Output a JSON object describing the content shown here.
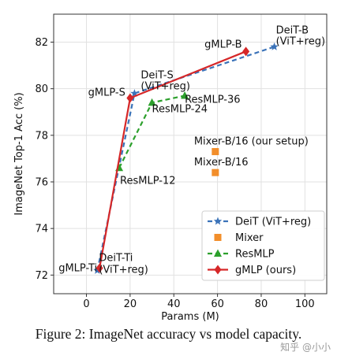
{
  "chart_data": {
    "type": "line",
    "xlabel": "Params (M)",
    "ylabel": "ImageNet Top-1 Acc (%)",
    "xlim": [
      -15,
      110
    ],
    "ylim": [
      71.2,
      83.2
    ],
    "xticks": [
      0,
      20,
      40,
      60,
      80,
      100
    ],
    "yticks": [
      72,
      74,
      76,
      78,
      80,
      82
    ],
    "grid": true,
    "legend_position": "lower right",
    "series": [
      {
        "name": "DeiT (ViT+reg)",
        "color": "#3b73b9",
        "marker": "star",
        "dash": true,
        "x": [
          5,
          22,
          86
        ],
        "y": [
          72.2,
          79.8,
          81.8
        ]
      },
      {
        "name": "Mixer",
        "color": "#f28e2b",
        "marker": "square",
        "dash": false,
        "line": false,
        "x": [
          59,
          59
        ],
        "y": [
          76.4,
          77.3
        ]
      },
      {
        "name": "ResMLP",
        "color": "#2ca02c",
        "marker": "triangle",
        "dash": true,
        "x": [
          15,
          30,
          45
        ],
        "y": [
          76.6,
          79.4,
          79.7
        ]
      },
      {
        "name": "gMLP (ours)",
        "color": "#d62728",
        "marker": "diamond",
        "dash": false,
        "x": [
          6,
          20,
          73
        ],
        "y": [
          72.3,
          79.6,
          81.6
        ]
      }
    ],
    "annotations": [
      {
        "text": "DeiT-B",
        "x": 86,
        "y": 81.8
      },
      {
        "text": "(ViT+reg)",
        "x": 86,
        "y": 81.8
      },
      {
        "text": "gMLP-B",
        "x": 73,
        "y": 81.6
      },
      {
        "text": "DeiT-S",
        "x": 22,
        "y": 79.8
      },
      {
        "text": "(ViT+reg)",
        "x": 22,
        "y": 79.8
      },
      {
        "text": "gMLP-S",
        "x": 20,
        "y": 79.6
      },
      {
        "text": "ResMLP-36",
        "x": 45,
        "y": 79.7
      },
      {
        "text": "ResMLP-24",
        "x": 30,
        "y": 79.4
      },
      {
        "text": "Mixer-B/16 (our setup)",
        "x": 59,
        "y": 77.3
      },
      {
        "text": "Mixer-B/16",
        "x": 59,
        "y": 76.4
      },
      {
        "text": "ResMLP-12",
        "x": 15,
        "y": 76.6
      },
      {
        "text": "DeiT-Ti",
        "x": 5,
        "y": 72.2
      },
      {
        "text": "(ViT+reg)",
        "x": 5,
        "y": 72.2
      },
      {
        "text": "gMLP-Ti",
        "x": 6,
        "y": 72.3
      }
    ]
  },
  "caption": "Figure 2: ImageNet accuracy vs model capacity.",
  "watermark": "知乎 @小小"
}
